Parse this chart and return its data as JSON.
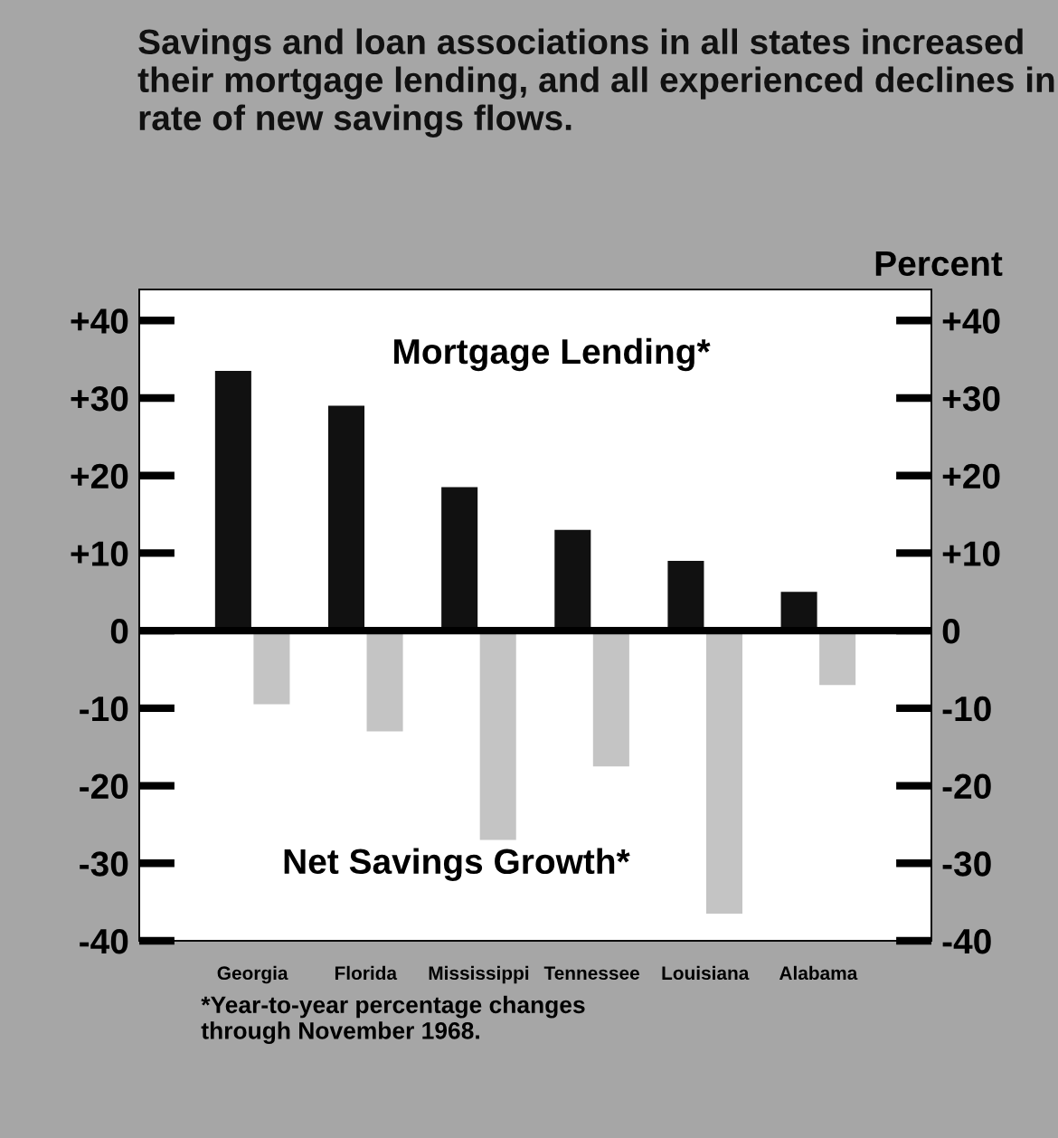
{
  "chart_data": {
    "type": "bar",
    "title": "Savings and loan associations in all states increased their mortgage lending, and all experienced declines in rate of new savings flows.",
    "y2label": "Percent",
    "categories": [
      "Georgia",
      "Florida",
      "Mississippi",
      "Tennessee",
      "Louisiana",
      "Alabama"
    ],
    "series": [
      {
        "name": "Mortgage Lending*",
        "color": "#111111",
        "values": [
          33.5,
          29,
          18.5,
          13,
          9,
          5
        ]
      },
      {
        "name": "Net Savings Growth*",
        "color": "#c4c4c4",
        "values": [
          -9.5,
          -13,
          -27,
          -17.5,
          -36.5,
          -7
        ]
      }
    ],
    "ylim": [
      -40,
      44
    ],
    "yticks": [
      {
        "value": 40,
        "label": "+40"
      },
      {
        "value": 30,
        "label": "+30"
      },
      {
        "value": 20,
        "label": "+20"
      },
      {
        "value": 10,
        "label": "+10"
      },
      0,
      -10,
      -20,
      -30,
      -40
    ],
    "y2lim": [
      -40,
      44
    ],
    "y2ticks": [
      {
        "value": 40,
        "label": "+40"
      },
      {
        "value": 30,
        "label": "+30"
      },
      {
        "value": 20,
        "label": "+20"
      },
      {
        "value": 10,
        "label": "+10"
      },
      0,
      -10,
      -20,
      -30,
      -40
    ],
    "ref_lines": [
      {
        "axis": "y",
        "value": 0,
        "color": "#000000"
      }
    ],
    "annotations": [
      "*Year-to-year percentage changes\nthrough November 1968."
    ],
    "grid": false,
    "legend": false
  }
}
